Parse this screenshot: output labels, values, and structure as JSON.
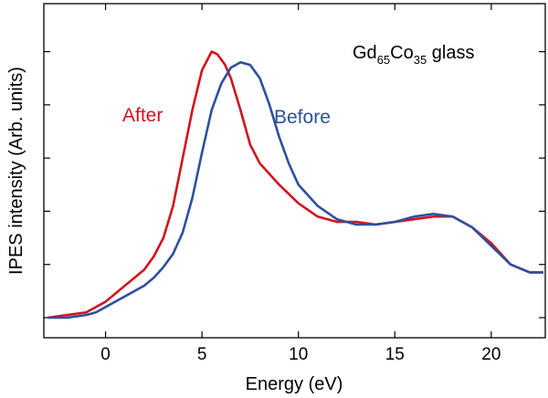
{
  "chart_data": {
    "type": "line",
    "title": {
      "prefix": "Gd",
      "sub1": "65",
      "mid": "Co",
      "sub2": "35",
      "suffix": " glass"
    },
    "xlabel": "Energy  (eV)",
    "ylabel": "IPES intensity  (Arb. units)",
    "xlim": [
      -3.2,
      22.8
    ],
    "ylim": [
      0,
      1.05
    ],
    "xticks": [
      0,
      5,
      10,
      15,
      20
    ],
    "xtick_labels": [
      "0",
      "5",
      "10",
      "15",
      "20"
    ],
    "yticks_unlabeled": [
      0,
      0.2,
      0.4,
      0.6,
      0.8,
      1.0
    ],
    "grid": false,
    "series": [
      {
        "name": "After",
        "color": "#d0141e",
        "x": [
          -3.0,
          -2.0,
          -1.0,
          -0.5,
          0,
          0.5,
          1.0,
          1.5,
          2.0,
          2.5,
          3.0,
          3.5,
          4.0,
          4.5,
          5.0,
          5.5,
          5.8,
          6.2,
          6.5,
          7.0,
          7.5,
          8.0,
          9.0,
          10.0,
          11.0,
          12.0,
          13.0,
          14.0,
          15.0,
          16.0,
          17.0,
          18.0,
          19.0,
          20.0,
          21.0,
          22.0,
          22.7
        ],
        "y": [
          0.0,
          0.01,
          0.02,
          0.04,
          0.06,
          0.09,
          0.12,
          0.15,
          0.18,
          0.23,
          0.3,
          0.42,
          0.6,
          0.78,
          0.93,
          1.0,
          0.99,
          0.95,
          0.9,
          0.78,
          0.65,
          0.58,
          0.5,
          0.43,
          0.38,
          0.36,
          0.36,
          0.35,
          0.36,
          0.37,
          0.38,
          0.38,
          0.34,
          0.28,
          0.2,
          0.17,
          0.17
        ]
      },
      {
        "name": "Before",
        "color": "#2e4f9e",
        "x": [
          -3.0,
          -2.0,
          -1.0,
          -0.5,
          0,
          0.5,
          1.0,
          1.5,
          2.0,
          2.5,
          3.0,
          3.5,
          4.0,
          4.5,
          5.0,
          5.5,
          6.0,
          6.5,
          7.0,
          7.5,
          8.0,
          8.5,
          9.0,
          9.5,
          10.0,
          11.0,
          12.0,
          13.0,
          14.0,
          15.0,
          16.0,
          17.0,
          18.0,
          19.0,
          20.0,
          21.0,
          22.0,
          22.7
        ],
        "y": [
          0.0,
          0.0,
          0.01,
          0.02,
          0.04,
          0.06,
          0.08,
          0.1,
          0.12,
          0.15,
          0.19,
          0.24,
          0.32,
          0.45,
          0.62,
          0.78,
          0.88,
          0.94,
          0.96,
          0.95,
          0.9,
          0.8,
          0.68,
          0.58,
          0.5,
          0.42,
          0.37,
          0.35,
          0.35,
          0.36,
          0.38,
          0.39,
          0.38,
          0.34,
          0.27,
          0.2,
          0.17,
          0.17
        ]
      }
    ]
  }
}
